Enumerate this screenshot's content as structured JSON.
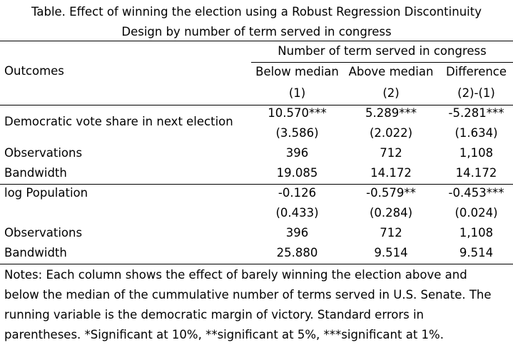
{
  "title": {
    "line1": "Table. Effect of winning the election using a Robust Regression Discontinuity",
    "line2": "Design by number of term served in congress"
  },
  "header": {
    "outcomes_label": "Outcomes",
    "group_label": "Number of term served in congress",
    "columns": [
      "Below median",
      "Above median",
      "Difference"
    ],
    "column_numbers": [
      "(1)",
      "(2)",
      "(2)-(1)"
    ]
  },
  "panels": [
    {
      "outcome": "Democratic vote share in next election",
      "estimates": [
        "10.570***",
        "5.289***",
        "-5.281***"
      ],
      "std_errors": [
        "(3.586)",
        "(2.022)",
        "(1.634)"
      ],
      "observations_label": "Observations",
      "observations": [
        "396",
        "712",
        "1,108"
      ],
      "bandwidth_label": "Bandwidth",
      "bandwidth": [
        "19.085",
        "14.172",
        "14.172"
      ]
    },
    {
      "outcome": "log Population",
      "estimates": [
        "-0.126",
        "-0.579**",
        "-0.453***"
      ],
      "std_errors": [
        "(0.433)",
        "(0.284)",
        "(0.024)"
      ],
      "observations_label": "Observations",
      "observations": [
        "396",
        "712",
        "1,108"
      ],
      "bandwidth_label": "Bandwidth",
      "bandwidth": [
        "25.880",
        "9.514",
        "9.514"
      ]
    }
  ],
  "notes": [
    "Notes: Each column shows the effect of barely winning the election above and",
    "below the median of the cummulative number of terms served in U.S. Senate. The",
    "running variable is the democratic margin of victory. Standard errors in",
    "parentheses. *Significant at 10%, **significant at 5%, ***significant at 1%."
  ]
}
